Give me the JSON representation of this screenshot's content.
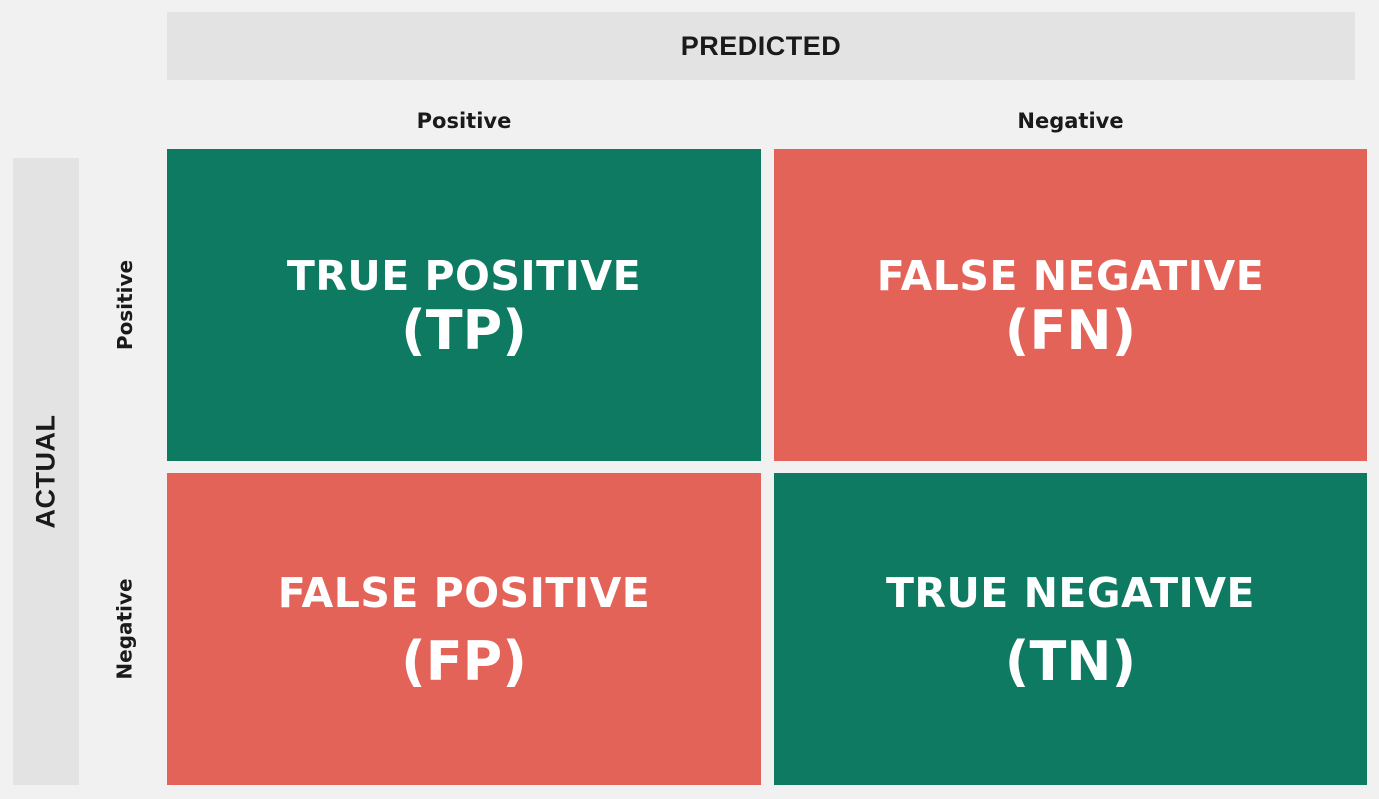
{
  "header": {
    "predicted": "PREDICTED",
    "actual": "ACTUAL"
  },
  "columns": {
    "positive": "Positive",
    "negative": "Negative"
  },
  "rows": {
    "positive": "Positive",
    "negative": "Negative"
  },
  "cells": {
    "tp": {
      "name": "TRUE POSITIVE",
      "abbr": "(TP)",
      "color": "#0f7a62"
    },
    "fn": {
      "name": "FALSE NEGATIVE",
      "abbr": "(FN)",
      "color": "#e46358"
    },
    "fp": {
      "name": "FALSE POSITIVE",
      "abbr": "(FP)",
      "color": "#e46358"
    },
    "tn": {
      "name": "TRUE NEGATIVE",
      "abbr": "(TN)",
      "color": "#0f7a62"
    }
  },
  "colors": {
    "background": "#f1f1f1",
    "header_band": "#e3e3e3",
    "correct": "#0f7a62",
    "incorrect": "#e46358"
  }
}
